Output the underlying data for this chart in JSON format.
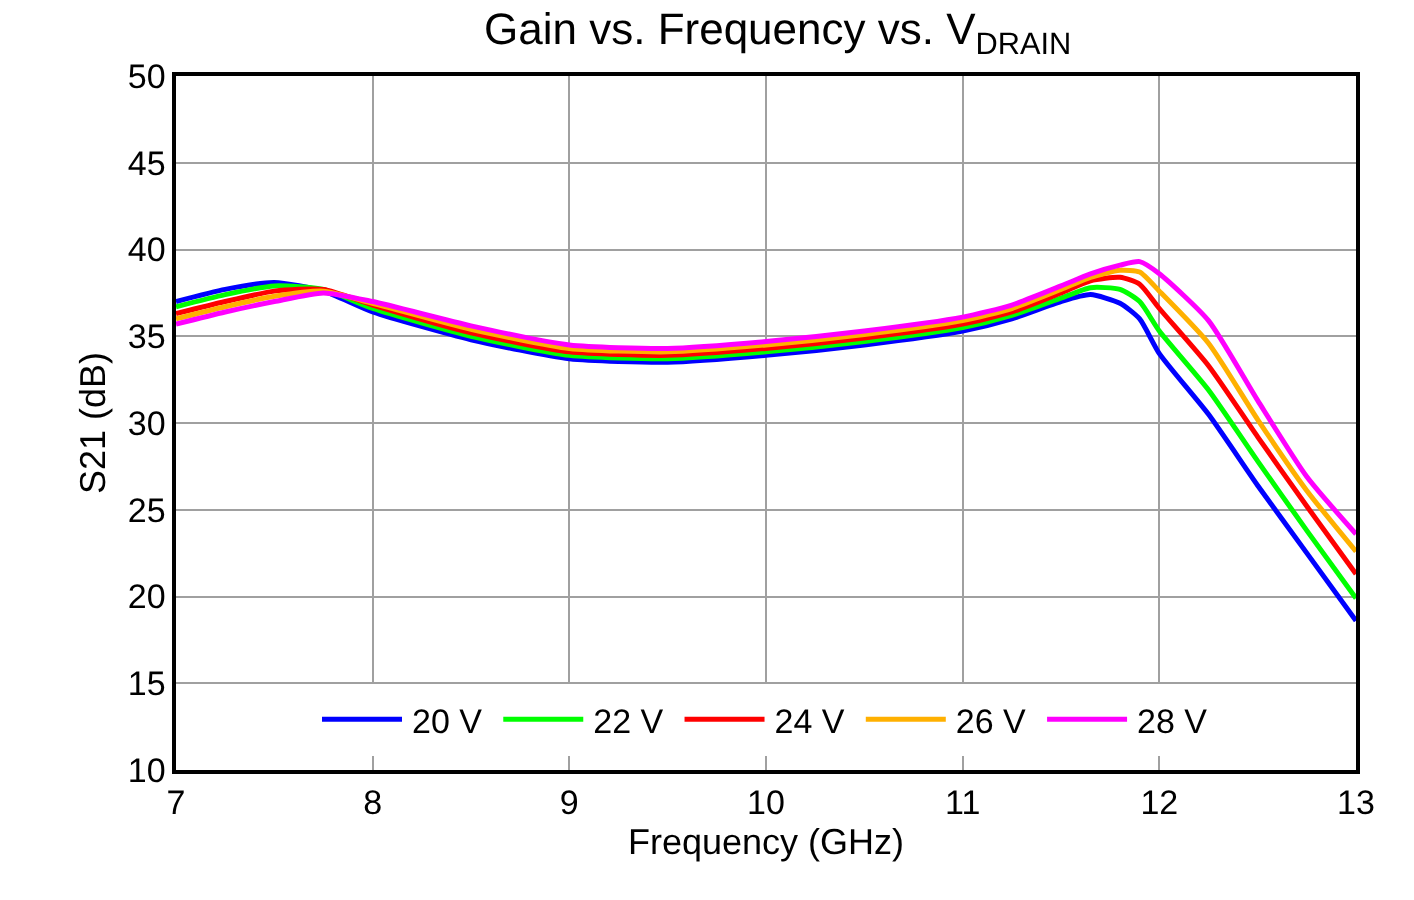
{
  "chart_data": {
    "type": "line",
    "title": "Gain vs. Frequency vs. V$_{DRAIN}$",
    "xlabel": "Frequency (GHz)",
    "ylabel": "S21 (dB)",
    "x": [
      7,
      7.25,
      7.5,
      7.75,
      8,
      8.5,
      9,
      9.5,
      10,
      10.5,
      11,
      11.25,
      11.5,
      11.65,
      11.8,
      11.9,
      12,
      12.25,
      12.5,
      12.75,
      13
    ],
    "xlim": [
      7,
      13
    ],
    "xticks": [
      7,
      8,
      9,
      10,
      11,
      12,
      13
    ],
    "ylim": [
      10,
      50
    ],
    "yticks": [
      10,
      15,
      20,
      25,
      30,
      35,
      40,
      45,
      50
    ],
    "grid": true,
    "legend": "bottom",
    "marker": "none",
    "line_style": "solid",
    "series": [
      {
        "name": "20 V",
        "color": "#0000ff",
        "values": [
          37.0,
          37.7,
          38.1,
          37.6,
          36.4,
          34.8,
          33.7,
          33.5,
          33.9,
          34.5,
          35.3,
          36.0,
          37.0,
          37.4,
          36.9,
          36.0,
          34.0,
          30.5,
          26.4,
          22.5,
          18.6
        ]
      },
      {
        "name": "22 V",
        "color": "#00ff00",
        "values": [
          36.7,
          37.4,
          37.9,
          37.7,
          36.6,
          35.0,
          33.9,
          33.7,
          34.1,
          34.7,
          35.5,
          36.2,
          37.2,
          37.8,
          37.7,
          37.0,
          35.3,
          31.9,
          27.8,
          23.8,
          19.9
        ]
      },
      {
        "name": "24 V",
        "color": "#ff0000",
        "values": [
          36.3,
          37.0,
          37.6,
          37.7,
          36.8,
          35.2,
          34.1,
          33.9,
          34.3,
          34.9,
          35.7,
          36.4,
          37.5,
          38.2,
          38.4,
          38.0,
          36.6,
          33.3,
          29.2,
          25.2,
          21.3
        ]
      },
      {
        "name": "26 V",
        "color": "#ffb000",
        "values": [
          36.0,
          36.7,
          37.3,
          37.6,
          36.9,
          35.4,
          34.3,
          34.1,
          34.5,
          35.1,
          35.9,
          36.6,
          37.7,
          38.4,
          38.8,
          38.7,
          37.6,
          34.6,
          30.2,
          26.1,
          22.6
        ]
      },
      {
        "name": "28 V",
        "color": "#ff00ff",
        "values": [
          35.7,
          36.4,
          37.0,
          37.5,
          37.0,
          35.6,
          34.5,
          34.3,
          34.7,
          35.3,
          36.1,
          36.8,
          37.9,
          38.6,
          39.1,
          39.3,
          38.6,
          35.9,
          31.3,
          26.9,
          23.6
        ]
      }
    ]
  }
}
